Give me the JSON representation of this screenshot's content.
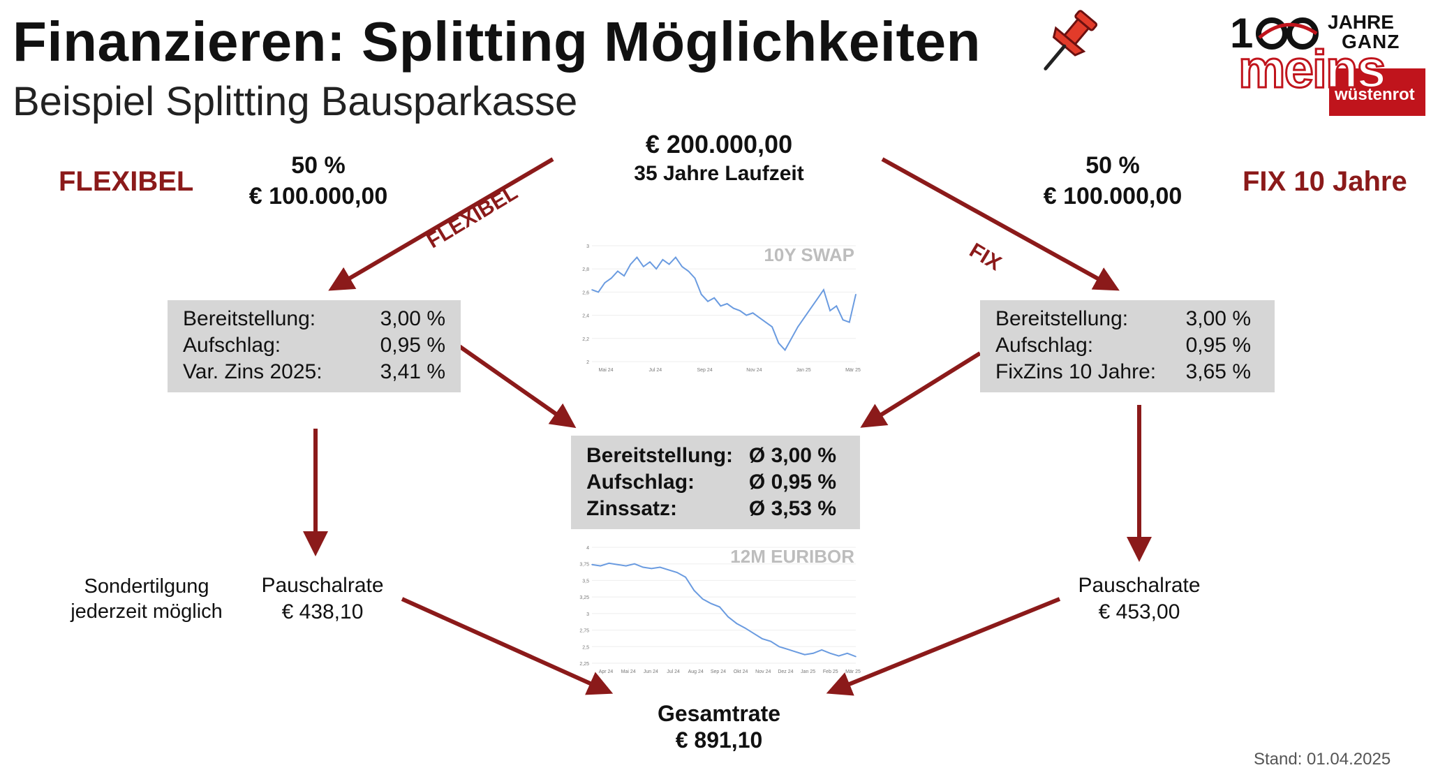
{
  "header": {
    "title": "Finanzieren: Splitting Möglichkeiten",
    "subtitle": "Beispiel Splitting Bausparkasse"
  },
  "logo": {
    "digits": "100",
    "line1": "JAHRE",
    "line2": "GANZ",
    "word": "meins",
    "brand": "wüstenrot"
  },
  "top": {
    "amount": "€ 200.000,00",
    "term": "35 Jahre Laufzeit"
  },
  "left": {
    "label": "FLEXIBEL",
    "share": "50 %",
    "amount": "€ 100.000,00",
    "arrow_label": "FLEXIBEL",
    "box": [
      {
        "k": "Bereitstellung:",
        "v": "3,00 %"
      },
      {
        "k": "Aufschlag:",
        "v": "0,95 %"
      },
      {
        "k": "Var. Zins 2025:",
        "v": "3,41 %"
      }
    ],
    "rate_label": "Pauschalrate",
    "rate_value": "€ 438,10",
    "note1": "Sondertilgung",
    "note2": "jederzeit möglich"
  },
  "right": {
    "label": "FIX 10 Jahre",
    "share": "50 %",
    "amount": "€ 100.000,00",
    "arrow_label": "FIX",
    "box": [
      {
        "k": "Bereitstellung:",
        "v": "3,00 %"
      },
      {
        "k": "Aufschlag:",
        "v": "0,95 %"
      },
      {
        "k": "FixZins 10 Jahre:",
        "v": "3,65 %"
      }
    ],
    "rate_label": "Pauschalrate",
    "rate_value": "€ 453,00"
  },
  "middle": {
    "box": [
      {
        "k": "Bereitstellung:",
        "v": "Ø 3,00 %"
      },
      {
        "k": "Aufschlag:",
        "v": "Ø 0,95 %"
      },
      {
        "k": "Zinssatz:",
        "v": "Ø 3,53 %"
      }
    ]
  },
  "total": {
    "label": "Gesamtrate",
    "value": "€ 891,10"
  },
  "footer": {
    "stand": "Stand: 01.04.2025"
  },
  "colors": {
    "accent": "#8b1a1a",
    "box": "#d6d6d6",
    "line": "#6a9be0",
    "pin": "#e23b2a"
  },
  "chart_data": [
    {
      "type": "line",
      "title": "10Y SWAP",
      "ylim": [
        2,
        3
      ],
      "yticks": [
        "2",
        "2,2",
        "2,4",
        "2,6",
        "2,8",
        "3"
      ],
      "xticks": [
        "Mai 24",
        "Jul 24",
        "Sep 24",
        "Nov 24",
        "Jan 25",
        "Mär 25"
      ],
      "series": [
        {
          "values": [
            2.62,
            2.6,
            2.68,
            2.72,
            2.78,
            2.74,
            2.84,
            2.9,
            2.82,
            2.86,
            2.8,
            2.88,
            2.84,
            2.9,
            2.82,
            2.78,
            2.72,
            2.58,
            2.52,
            2.55,
            2.48,
            2.5,
            2.46,
            2.44,
            2.4,
            2.42,
            2.38,
            2.34,
            2.3,
            2.16,
            2.1,
            2.2,
            2.3,
            2.38,
            2.46,
            2.54,
            2.62,
            2.44,
            2.48,
            2.36,
            2.34,
            2.58
          ]
        }
      ]
    },
    {
      "type": "line",
      "title": "12M EURIBOR",
      "ylim": [
        2.25,
        4
      ],
      "yticks": [
        "2,25",
        "2,5",
        "2,75",
        "3",
        "3,25",
        "3,5",
        "3,75",
        "4"
      ],
      "xticks": [
        "Apr 24",
        "Mai 24",
        "Jun 24",
        "Jul 24",
        "Aug 24",
        "Sep 24",
        "Okt 24",
        "Nov 24",
        "Dez 24",
        "Jan 25",
        "Feb 25",
        "Mär 25"
      ],
      "series": [
        {
          "values": [
            3.74,
            3.72,
            3.76,
            3.74,
            3.72,
            3.75,
            3.7,
            3.68,
            3.7,
            3.66,
            3.62,
            3.55,
            3.35,
            3.22,
            3.15,
            3.1,
            2.95,
            2.85,
            2.78,
            2.7,
            2.62,
            2.58,
            2.5,
            2.46,
            2.42,
            2.38,
            2.4,
            2.45,
            2.4,
            2.36,
            2.4,
            2.35
          ]
        }
      ]
    }
  ]
}
